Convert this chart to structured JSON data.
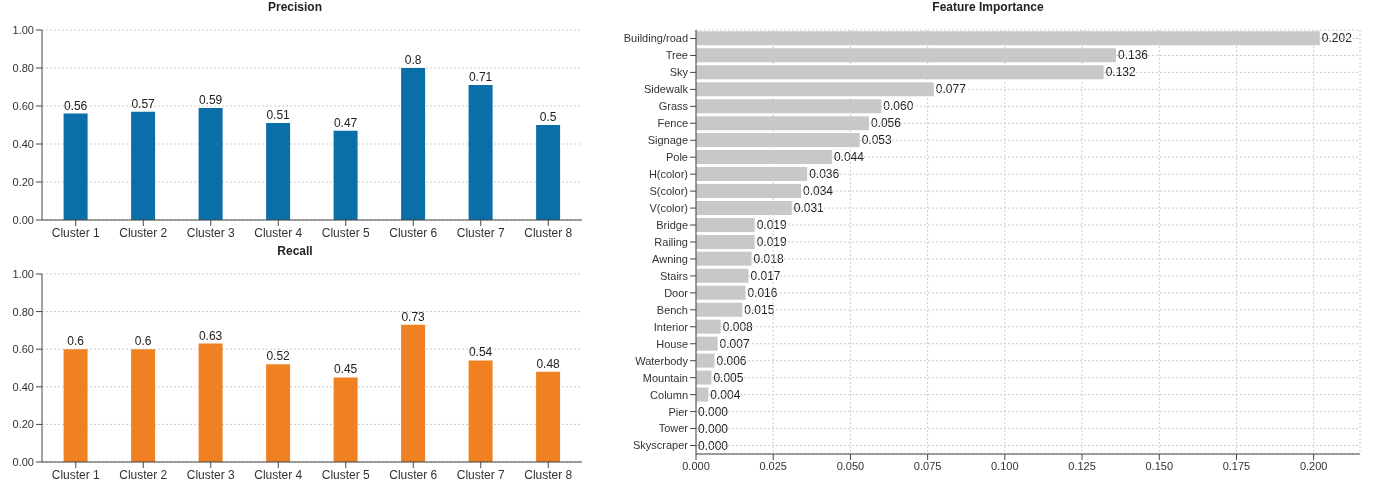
{
  "chart_data": [
    {
      "type": "bar",
      "title": "Precision",
      "categories": [
        "Cluster 1",
        "Cluster 2",
        "Cluster 3",
        "Cluster 4",
        "Cluster 5",
        "Cluster 6",
        "Cluster 7",
        "Cluster 8"
      ],
      "values": [
        0.56,
        0.57,
        0.59,
        0.51,
        0.47,
        0.8,
        0.71,
        0.5
      ],
      "color": "#0a6ea8",
      "ylim": [
        0,
        1
      ],
      "yticks": [
        {
          "value": 0,
          "label": "0.00"
        },
        {
          "value": 0.2,
          "label": "0.20"
        },
        {
          "value": 0.4,
          "label": "0.40"
        },
        {
          "value": 0.6,
          "label": "0.60"
        },
        {
          "value": 0.8,
          "label": "0.80"
        },
        {
          "value": 1,
          "label": "1.00"
        }
      ],
      "grid": "y",
      "data_labels": true
    },
    {
      "type": "bar",
      "title": "Recall",
      "categories": [
        "Cluster 1",
        "Cluster 2",
        "Cluster 3",
        "Cluster 4",
        "Cluster 5",
        "Cluster 6",
        "Cluster 7",
        "Cluster 8"
      ],
      "values": [
        0.6,
        0.6,
        0.63,
        0.52,
        0.45,
        0.73,
        0.54,
        0.48
      ],
      "color": "#ef8122",
      "ylim": [
        0,
        1
      ],
      "yticks": [
        {
          "value": 0,
          "label": "0.00"
        },
        {
          "value": 0.2,
          "label": "0.20"
        },
        {
          "value": 0.4,
          "label": "0.40"
        },
        {
          "value": 0.6,
          "label": "0.60"
        },
        {
          "value": 0.8,
          "label": "0.80"
        },
        {
          "value": 1,
          "label": "1.00"
        }
      ],
      "grid": "y",
      "data_labels": true
    },
    {
      "type": "bar",
      "orientation": "horizontal",
      "title": "Feature Importance",
      "categories": [
        "Building/road",
        "Tree",
        "Sky",
        "Sidewalk",
        "Grass",
        "Fence",
        "Signage",
        "Pole",
        "H(color)",
        "S(color)",
        "V(color)",
        "Bridge",
        "Railing",
        "Awning",
        "Stairs",
        "Door",
        "Bench",
        "Interior",
        "House",
        "Waterbody",
        "Mountain",
        "Column",
        "Pier",
        "Tower",
        "Skyscraper"
      ],
      "values": [
        0.202,
        0.136,
        0.132,
        0.077,
        0.06,
        0.056,
        0.053,
        0.044,
        0.036,
        0.034,
        0.031,
        0.019,
        0.019,
        0.018,
        0.017,
        0.016,
        0.015,
        0.008,
        0.007,
        0.006,
        0.005,
        0.004,
        0.0,
        0.0,
        0.0
      ],
      "value_labels": [
        "0.202",
        "0.136",
        "0.132",
        "0.077",
        "0.060",
        "0.056",
        "0.053",
        "0.044",
        "0.036",
        "0.034",
        "0.031",
        "0.019",
        "0.019",
        "0.018",
        "0.017",
        "0.016",
        "0.015",
        "0.008",
        "0.007",
        "0.006",
        "0.005",
        "0.004",
        "0.000",
        "0.000",
        "0.000"
      ],
      "color": "#c8c8c8",
      "xlim": [
        0,
        0.215
      ],
      "xticks": [
        {
          "value": 0,
          "label": "0.000"
        },
        {
          "value": 0.025,
          "label": "0.025"
        },
        {
          "value": 0.05,
          "label": "0.050"
        },
        {
          "value": 0.075,
          "label": "0.075"
        },
        {
          "value": 0.1,
          "label": "0.100"
        },
        {
          "value": 0.125,
          "label": "0.125"
        },
        {
          "value": 0.15,
          "label": "0.150"
        },
        {
          "value": 0.175,
          "label": "0.175"
        },
        {
          "value": 0.2,
          "label": "0.200"
        }
      ],
      "grid": true
    }
  ]
}
